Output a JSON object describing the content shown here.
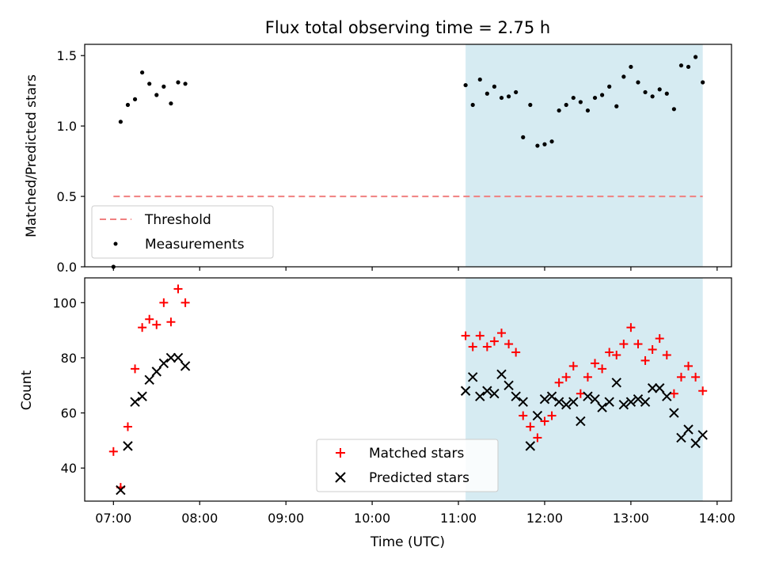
{
  "chart_data": [
    {
      "type": "scatter",
      "title": "Flux total observing time = 2.75 h",
      "xlabel": "",
      "ylabel": "Matched/Predicted stars",
      "xlim": [
        "06:40",
        "14:10"
      ],
      "ylim": [
        0,
        1.58
      ],
      "xticks": [
        "07:00",
        "08:00",
        "09:00",
        "10:00",
        "11:00",
        "12:00",
        "13:00",
        "14:00"
      ],
      "yticks": [
        "0.0",
        "0.5",
        "1.0",
        "1.5"
      ],
      "shaded_span": [
        "11:05",
        "13:50"
      ],
      "shade_color": "#add8e6",
      "threshold": {
        "name": "Threshold",
        "value": 0.5,
        "x_range": [
          "07:00",
          "13:50"
        ],
        "color": "#f08080"
      },
      "series": [
        {
          "name": "Measurements",
          "color": "#000000",
          "points": [
            [
              "07:00",
              0.0
            ],
            [
              "07:05",
              1.03
            ],
            [
              "07:10",
              1.15
            ],
            [
              "07:15",
              1.19
            ],
            [
              "07:20",
              1.38
            ],
            [
              "07:25",
              1.3
            ],
            [
              "07:30",
              1.22
            ],
            [
              "07:35",
              1.28
            ],
            [
              "07:40",
              1.16
            ],
            [
              "07:45",
              1.31
            ],
            [
              "07:50",
              1.3
            ],
            [
              "11:05",
              1.29
            ],
            [
              "11:10",
              1.15
            ],
            [
              "11:15",
              1.33
            ],
            [
              "11:20",
              1.23
            ],
            [
              "11:25",
              1.28
            ],
            [
              "11:30",
              1.2
            ],
            [
              "11:35",
              1.21
            ],
            [
              "11:40",
              1.24
            ],
            [
              "11:45",
              0.92
            ],
            [
              "11:50",
              1.15
            ],
            [
              "11:55",
              0.86
            ],
            [
              "12:00",
              0.87
            ],
            [
              "12:05",
              0.89
            ],
            [
              "12:10",
              1.11
            ],
            [
              "12:15",
              1.15
            ],
            [
              "12:20",
              1.2
            ],
            [
              "12:25",
              1.17
            ],
            [
              "12:30",
              1.11
            ],
            [
              "12:35",
              1.2
            ],
            [
              "12:40",
              1.22
            ],
            [
              "12:45",
              1.28
            ],
            [
              "12:50",
              1.14
            ],
            [
              "12:55",
              1.35
            ],
            [
              "13:00",
              1.42
            ],
            [
              "13:05",
              1.31
            ],
            [
              "13:10",
              1.24
            ],
            [
              "13:15",
              1.21
            ],
            [
              "13:20",
              1.26
            ],
            [
              "13:25",
              1.23
            ],
            [
              "13:30",
              1.12
            ],
            [
              "13:35",
              1.43
            ],
            [
              "13:40",
              1.42
            ],
            [
              "13:45",
              1.49
            ],
            [
              "13:50",
              1.31
            ]
          ]
        }
      ],
      "legend": {
        "position": "lower-left",
        "entries": [
          "Threshold",
          "Measurements"
        ]
      }
    },
    {
      "type": "scatter",
      "title": "",
      "xlabel": "Time (UTC)",
      "ylabel": "Count",
      "xlim": [
        "06:40",
        "14:10"
      ],
      "ylim": [
        28,
        109
      ],
      "xticks": [
        "07:00",
        "08:00",
        "09:00",
        "10:00",
        "11:00",
        "12:00",
        "13:00",
        "14:00"
      ],
      "yticks": [
        "40",
        "60",
        "80",
        "100"
      ],
      "shaded_span": [
        "11:05",
        "13:50"
      ],
      "shade_color": "#add8e6",
      "series": [
        {
          "name": "Matched stars",
          "marker": "plus",
          "color": "#ff0000",
          "points": [
            [
              "07:00",
              46
            ],
            [
              "07:05",
              33
            ],
            [
              "07:10",
              55
            ],
            [
              "07:15",
              76
            ],
            [
              "07:20",
              91
            ],
            [
              "07:25",
              94
            ],
            [
              "07:30",
              92
            ],
            [
              "07:35",
              100
            ],
            [
              "07:40",
              93
            ],
            [
              "07:45",
              105
            ],
            [
              "07:50",
              100
            ],
            [
              "11:05",
              88
            ],
            [
              "11:10",
              84
            ],
            [
              "11:15",
              88
            ],
            [
              "11:20",
              84
            ],
            [
              "11:25",
              86
            ],
            [
              "11:30",
              89
            ],
            [
              "11:35",
              85
            ],
            [
              "11:40",
              82
            ],
            [
              "11:45",
              59
            ],
            [
              "11:50",
              55
            ],
            [
              "11:55",
              51
            ],
            [
              "12:00",
              57
            ],
            [
              "12:05",
              59
            ],
            [
              "12:10",
              71
            ],
            [
              "12:15",
              73
            ],
            [
              "12:20",
              77
            ],
            [
              "12:25",
              67
            ],
            [
              "12:30",
              73
            ],
            [
              "12:35",
              78
            ],
            [
              "12:40",
              76
            ],
            [
              "12:45",
              82
            ],
            [
              "12:50",
              81
            ],
            [
              "12:55",
              85
            ],
            [
              "13:00",
              91
            ],
            [
              "13:05",
              85
            ],
            [
              "13:10",
              79
            ],
            [
              "13:15",
              83
            ],
            [
              "13:20",
              87
            ],
            [
              "13:25",
              81
            ],
            [
              "13:30",
              67
            ],
            [
              "13:35",
              73
            ],
            [
              "13:40",
              77
            ],
            [
              "13:45",
              73
            ],
            [
              "13:50",
              68
            ]
          ]
        },
        {
          "name": "Predicted stars",
          "marker": "x",
          "color": "#000000",
          "points": [
            [
              "07:05",
              32
            ],
            [
              "07:10",
              48
            ],
            [
              "07:15",
              64
            ],
            [
              "07:20",
              66
            ],
            [
              "07:25",
              72
            ],
            [
              "07:30",
              75
            ],
            [
              "07:35",
              78
            ],
            [
              "07:40",
              80
            ],
            [
              "07:45",
              80
            ],
            [
              "07:50",
              77
            ],
            [
              "11:05",
              68
            ],
            [
              "11:10",
              73
            ],
            [
              "11:15",
              66
            ],
            [
              "11:20",
              68
            ],
            [
              "11:25",
              67
            ],
            [
              "11:30",
              74
            ],
            [
              "11:35",
              70
            ],
            [
              "11:40",
              66
            ],
            [
              "11:45",
              64
            ],
            [
              "11:50",
              48
            ],
            [
              "11:55",
              59
            ],
            [
              "12:00",
              65
            ],
            [
              "12:05",
              66
            ],
            [
              "12:10",
              64
            ],
            [
              "12:15",
              63
            ],
            [
              "12:20",
              64
            ],
            [
              "12:25",
              57
            ],
            [
              "12:30",
              66
            ],
            [
              "12:35",
              65
            ],
            [
              "12:40",
              62
            ],
            [
              "12:45",
              64
            ],
            [
              "12:50",
              71
            ],
            [
              "12:55",
              63
            ],
            [
              "13:00",
              64
            ],
            [
              "13:05",
              65
            ],
            [
              "13:10",
              64
            ],
            [
              "13:15",
              69
            ],
            [
              "13:20",
              69
            ],
            [
              "13:25",
              66
            ],
            [
              "13:30",
              60
            ],
            [
              "13:35",
              51
            ],
            [
              "13:40",
              54
            ],
            [
              "13:45",
              49
            ],
            [
              "13:50",
              52
            ]
          ]
        }
      ],
      "legend": {
        "position": "lower-center",
        "entries": [
          "Matched stars",
          "Predicted stars"
        ]
      }
    }
  ]
}
